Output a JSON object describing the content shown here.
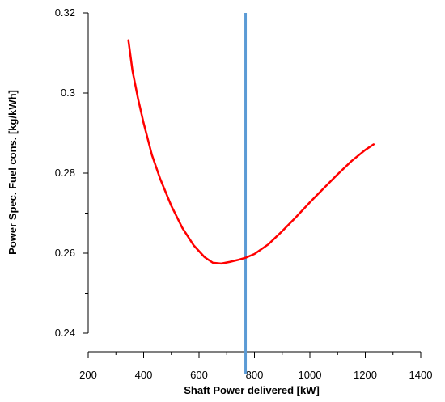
{
  "chart_data": {
    "type": "line",
    "title": "",
    "xlabel": "Shaft Power delivered [kW]",
    "ylabel": "Power Spec. Fuel cons. [kg/kWh]",
    "xlim": [
      200,
      1400
    ],
    "ylim": [
      0.24,
      0.32
    ],
    "x_ticks": [
      200,
      400,
      600,
      800,
      1000,
      1200,
      1400
    ],
    "x_tick_labels": [
      "200",
      "400",
      "600",
      "800",
      "1000",
      "1200",
      "1400"
    ],
    "y_ticks": [
      0.24,
      0.26,
      0.28,
      0.3,
      0.32
    ],
    "y_tick_labels": [
      "0.24",
      "0.26",
      "0.28",
      "0.3",
      "0.32"
    ],
    "grid": false,
    "series": [
      {
        "color": "#ff0000",
        "x": [
          345,
          360,
          380,
          400,
          430,
          460,
          500,
          540,
          580,
          620,
          650,
          680,
          710,
          740,
          770,
          800,
          850,
          900,
          950,
          1000,
          1050,
          1100,
          1150,
          1200,
          1230
        ],
        "y": [
          0.3132,
          0.3055,
          0.2985,
          0.2925,
          0.2845,
          0.2785,
          0.2718,
          0.2663,
          0.262,
          0.259,
          0.2576,
          0.2574,
          0.2578,
          0.2583,
          0.2589,
          0.2598,
          0.2622,
          0.2655,
          0.269,
          0.2727,
          0.2762,
          0.2797,
          0.283,
          0.2858,
          0.2872
        ]
      }
    ],
    "vertical_line": {
      "x": 768,
      "color": "#5b9bd5"
    }
  }
}
